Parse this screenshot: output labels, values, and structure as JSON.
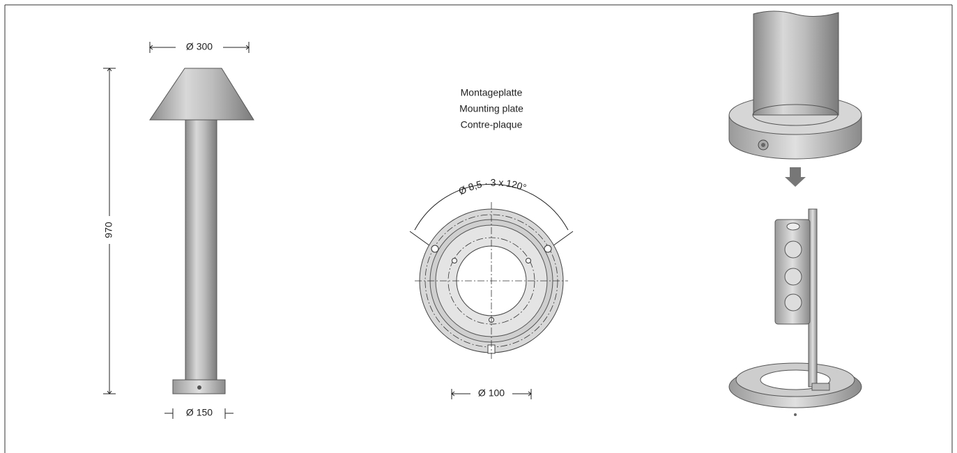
{
  "bollard": {
    "top_diameter": "Ø 300",
    "height": "970",
    "base_diameter": "Ø 150"
  },
  "mounting_plate": {
    "labels": [
      "Montageplatte",
      "Mounting plate",
      "Contre-plaque"
    ],
    "hole_spec": "Ø 8,5 · 3 x 120°",
    "inner_diameter": "Ø 100"
  }
}
